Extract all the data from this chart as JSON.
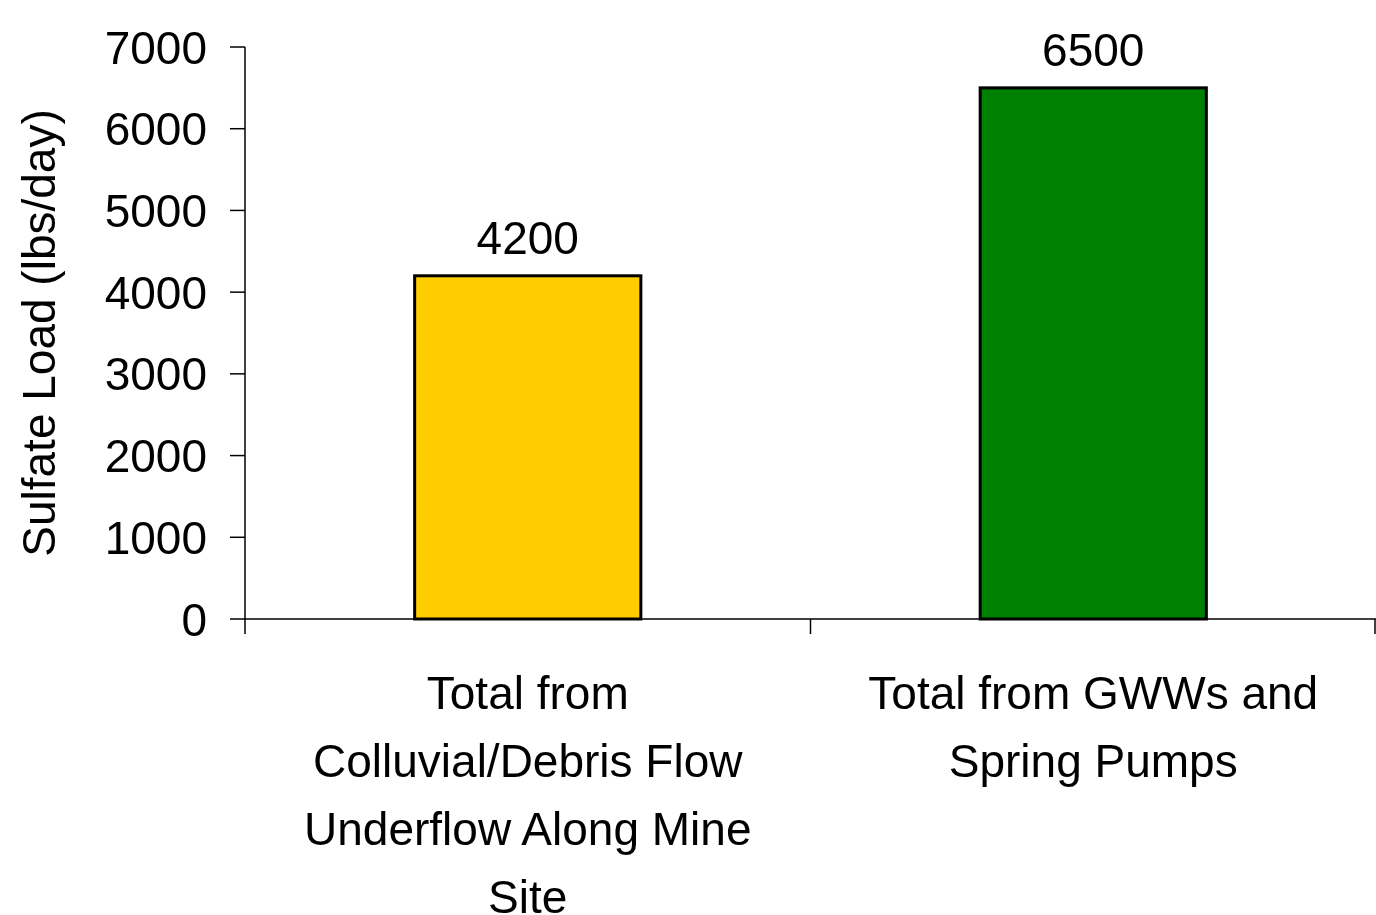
{
  "chart_data": {
    "type": "bar",
    "ylabel": "Sulfate Load (lbs/day)",
    "categories": [
      "Total from Colluvial/Debris Flow Underflow Along Mine Site",
      "Total from GWWs and Spring Pumps"
    ],
    "values": [
      4200,
      6500
    ],
    "colors": [
      "#ffcc00",
      "#008000"
    ],
    "ylim": [
      0,
      7000
    ],
    "yticks": [
      0,
      1000,
      2000,
      3000,
      4000,
      5000,
      6000,
      7000
    ],
    "data_labels": true,
    "grid": false
  }
}
